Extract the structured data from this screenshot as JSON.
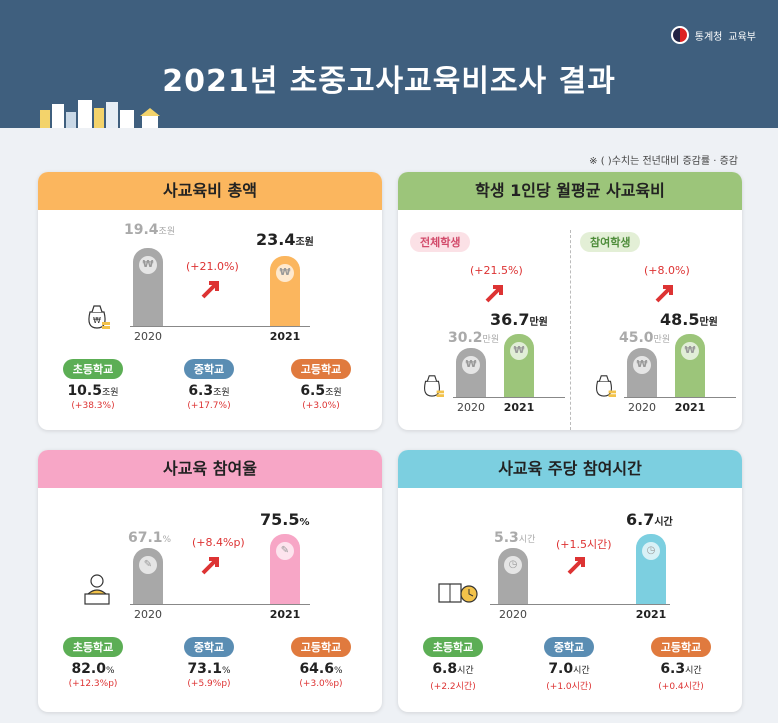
{
  "header": {
    "title": "2021년 초중고사교육비조사 결과",
    "org1": "통계청",
    "org2": "교육부",
    "note": "※ (     )수치는 전년대비 증감률 · 증감"
  },
  "colors": {
    "orange": "#fbb65e",
    "green": "#9cc57a",
    "pink": "#f7a6c6",
    "blue": "#7ccfe0",
    "grey": "#a8a8a8",
    "school_elem": "#5cae55",
    "school_mid": "#5a8db3",
    "school_high": "#e07a3e"
  },
  "total": {
    "heading": "사교육비 총액",
    "old_value": "19.4",
    "old_unit": "조원",
    "old_year": "2020",
    "new_value": "23.4",
    "new_unit": "조원",
    "new_year": "2021",
    "change": "(+21.0%)",
    "chart_data": {
      "type": "bar",
      "categories": [
        "2020",
        "2021"
      ],
      "values": [
        19.4,
        23.4
      ],
      "ylabel": "조원"
    },
    "schools": [
      {
        "label": "초등학교",
        "value": "10.5",
        "unit": "조원",
        "change": "(+38.3%)"
      },
      {
        "label": "중학교",
        "value": "6.3",
        "unit": "조원",
        "change": "(+17.7%)"
      },
      {
        "label": "고등학교",
        "value": "6.5",
        "unit": "조원",
        "change": "(+3.0%)"
      }
    ]
  },
  "per_student": {
    "heading": "학생 1인당 월평균 사교육비",
    "all": {
      "tag": "전체학생",
      "old_value": "30.2",
      "old_unit": "만원",
      "old_year": "2020",
      "new_value": "36.7",
      "new_unit": "만원",
      "new_year": "2021",
      "change": "(+21.5%)",
      "chart_data": {
        "type": "bar",
        "categories": [
          "2020",
          "2021"
        ],
        "values": [
          30.2,
          36.7
        ],
        "ylabel": "만원"
      }
    },
    "participants": {
      "tag": "참여학생",
      "old_value": "45.0",
      "old_unit": "만원",
      "old_year": "2020",
      "new_value": "48.5",
      "new_unit": "만원",
      "new_year": "2021",
      "change": "(+8.0%)",
      "chart_data": {
        "type": "bar",
        "categories": [
          "2020",
          "2021"
        ],
        "values": [
          45.0,
          48.5
        ],
        "ylabel": "만원"
      }
    }
  },
  "participation": {
    "heading": "사교육 참여율",
    "old_value": "67.1",
    "old_unit": "%",
    "old_year": "2020",
    "new_value": "75.5",
    "new_unit": "%",
    "new_year": "2021",
    "change": "(+8.4%p)",
    "chart_data": {
      "type": "bar",
      "categories": [
        "2020",
        "2021"
      ],
      "values": [
        67.1,
        75.5
      ],
      "ylabel": "%"
    },
    "schools": [
      {
        "label": "초등학교",
        "value": "82.0",
        "unit": "%",
        "change": "(+12.3%p)"
      },
      {
        "label": "중학교",
        "value": "73.1",
        "unit": "%",
        "change": "(+5.9%p)"
      },
      {
        "label": "고등학교",
        "value": "64.6",
        "unit": "%",
        "change": "(+3.0%p)"
      }
    ]
  },
  "weekly_hours": {
    "heading": "사교육 주당 참여시간",
    "old_value": "5.3",
    "old_unit": "시간",
    "old_year": "2020",
    "new_value": "6.7",
    "new_unit": "시간",
    "new_year": "2021",
    "change": "(+1.5시간)",
    "chart_data": {
      "type": "bar",
      "categories": [
        "2020",
        "2021"
      ],
      "values": [
        5.3,
        6.7
      ],
      "ylabel": "시간"
    },
    "schools": [
      {
        "label": "초등학교",
        "value": "6.8",
        "unit": "시간",
        "change": "(+2.2시간)"
      },
      {
        "label": "중학교",
        "value": "7.0",
        "unit": "시간",
        "change": "(+1.0시간)"
      },
      {
        "label": "고등학교",
        "value": "6.3",
        "unit": "시간",
        "change": "(+0.4시간)"
      }
    ]
  }
}
